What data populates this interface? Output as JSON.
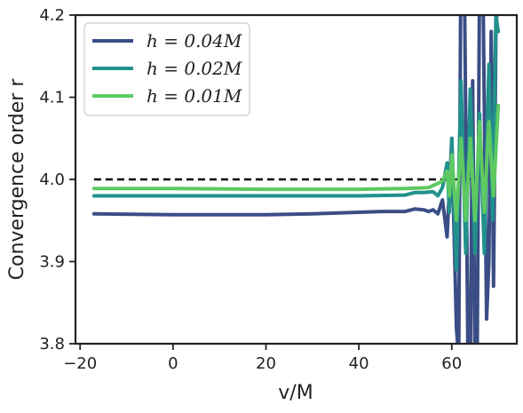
{
  "chart_data": {
    "type": "line",
    "xlabel": "v/M",
    "ylabel": "Convergence order r",
    "xlim": [
      -21,
      74
    ],
    "ylim": [
      3.8,
      4.2
    ],
    "x_ticks": [
      -20,
      0,
      20,
      40,
      60
    ],
    "x_tick_labels": [
      "−20",
      "0",
      "20",
      "40",
      "60"
    ],
    "y_ticks": [
      3.8,
      3.9,
      4.0,
      4.1,
      4.2
    ],
    "y_tick_labels": [
      "3.8",
      "3.9",
      "4.0",
      "4.1",
      "4.2"
    ],
    "grid": false,
    "legend_position": "top-left",
    "reference_line": {
      "y": 4.0,
      "x_start": -17,
      "x_end": 70,
      "style": "dashed",
      "color": "#000000"
    },
    "series": [
      {
        "name": "h = 0.04M",
        "color": "#3a4d85",
        "points": [
          [
            -17,
            3.958
          ],
          [
            0,
            3.957
          ],
          [
            20,
            3.957
          ],
          [
            30,
            3.958
          ],
          [
            40,
            3.96
          ],
          [
            45,
            3.961
          ],
          [
            50,
            3.961
          ],
          [
            52,
            3.964
          ],
          [
            54,
            3.963
          ],
          [
            55,
            3.961
          ],
          [
            56,
            3.963
          ],
          [
            57,
            3.958
          ],
          [
            58,
            3.975
          ],
          [
            59,
            3.93
          ],
          [
            60,
            4.05
          ],
          [
            61,
            3.82
          ],
          [
            61.5,
            3.78
          ],
          [
            62,
            4.3
          ],
          [
            62.8,
            4.2
          ],
          [
            63.5,
            3.77
          ],
          [
            64,
            3.78
          ],
          [
            64.5,
            4.12
          ],
          [
            65,
            3.77
          ],
          [
            65.5,
            3.8
          ],
          [
            66,
            4.25
          ],
          [
            66.8,
            4.2
          ],
          [
            67.5,
            3.83
          ],
          [
            68,
            3.9
          ],
          [
            68.5,
            4.18
          ],
          [
            69,
            3.87
          ],
          [
            69.5,
            4.18
          ],
          [
            70,
            4.24
          ]
        ]
      },
      {
        "name": "h = 0.02M",
        "color": "#21918c",
        "points": [
          [
            -17,
            3.98
          ],
          [
            0,
            3.98
          ],
          [
            20,
            3.98
          ],
          [
            40,
            3.98
          ],
          [
            50,
            3.981
          ],
          [
            52,
            3.984
          ],
          [
            54,
            3.984
          ],
          [
            56,
            3.985
          ],
          [
            57,
            3.98
          ],
          [
            58,
            3.99
          ],
          [
            59,
            4.02
          ],
          [
            59.5,
            3.96
          ],
          [
            60,
            4.05
          ],
          [
            61,
            3.89
          ],
          [
            62,
            4.12
          ],
          [
            63,
            3.91
          ],
          [
            64,
            4.11
          ],
          [
            65,
            3.91
          ],
          [
            66,
            4.08
          ],
          [
            67,
            3.91
          ],
          [
            68,
            4.14
          ],
          [
            68.8,
            3.95
          ],
          [
            69.5,
            4.2
          ],
          [
            70,
            4.18
          ]
        ]
      },
      {
        "name": "h = 0.01M",
        "color": "#5ec962",
        "points": [
          [
            -17,
            3.989
          ],
          [
            0,
            3.989
          ],
          [
            20,
            3.988
          ],
          [
            40,
            3.988
          ],
          [
            50,
            3.989
          ],
          [
            55,
            3.99
          ],
          [
            57,
            3.995
          ],
          [
            58,
            3.998
          ],
          [
            59,
            4.01
          ],
          [
            59.5,
            3.98
          ],
          [
            60,
            4.03
          ],
          [
            61,
            3.95
          ],
          [
            62,
            4.05
          ],
          [
            63,
            3.95
          ],
          [
            64,
            4.05
          ],
          [
            65,
            3.95
          ],
          [
            66,
            4.07
          ],
          [
            67,
            3.96
          ],
          [
            68,
            4.07
          ],
          [
            69,
            3.98
          ],
          [
            70,
            4.09
          ]
        ]
      }
    ]
  }
}
